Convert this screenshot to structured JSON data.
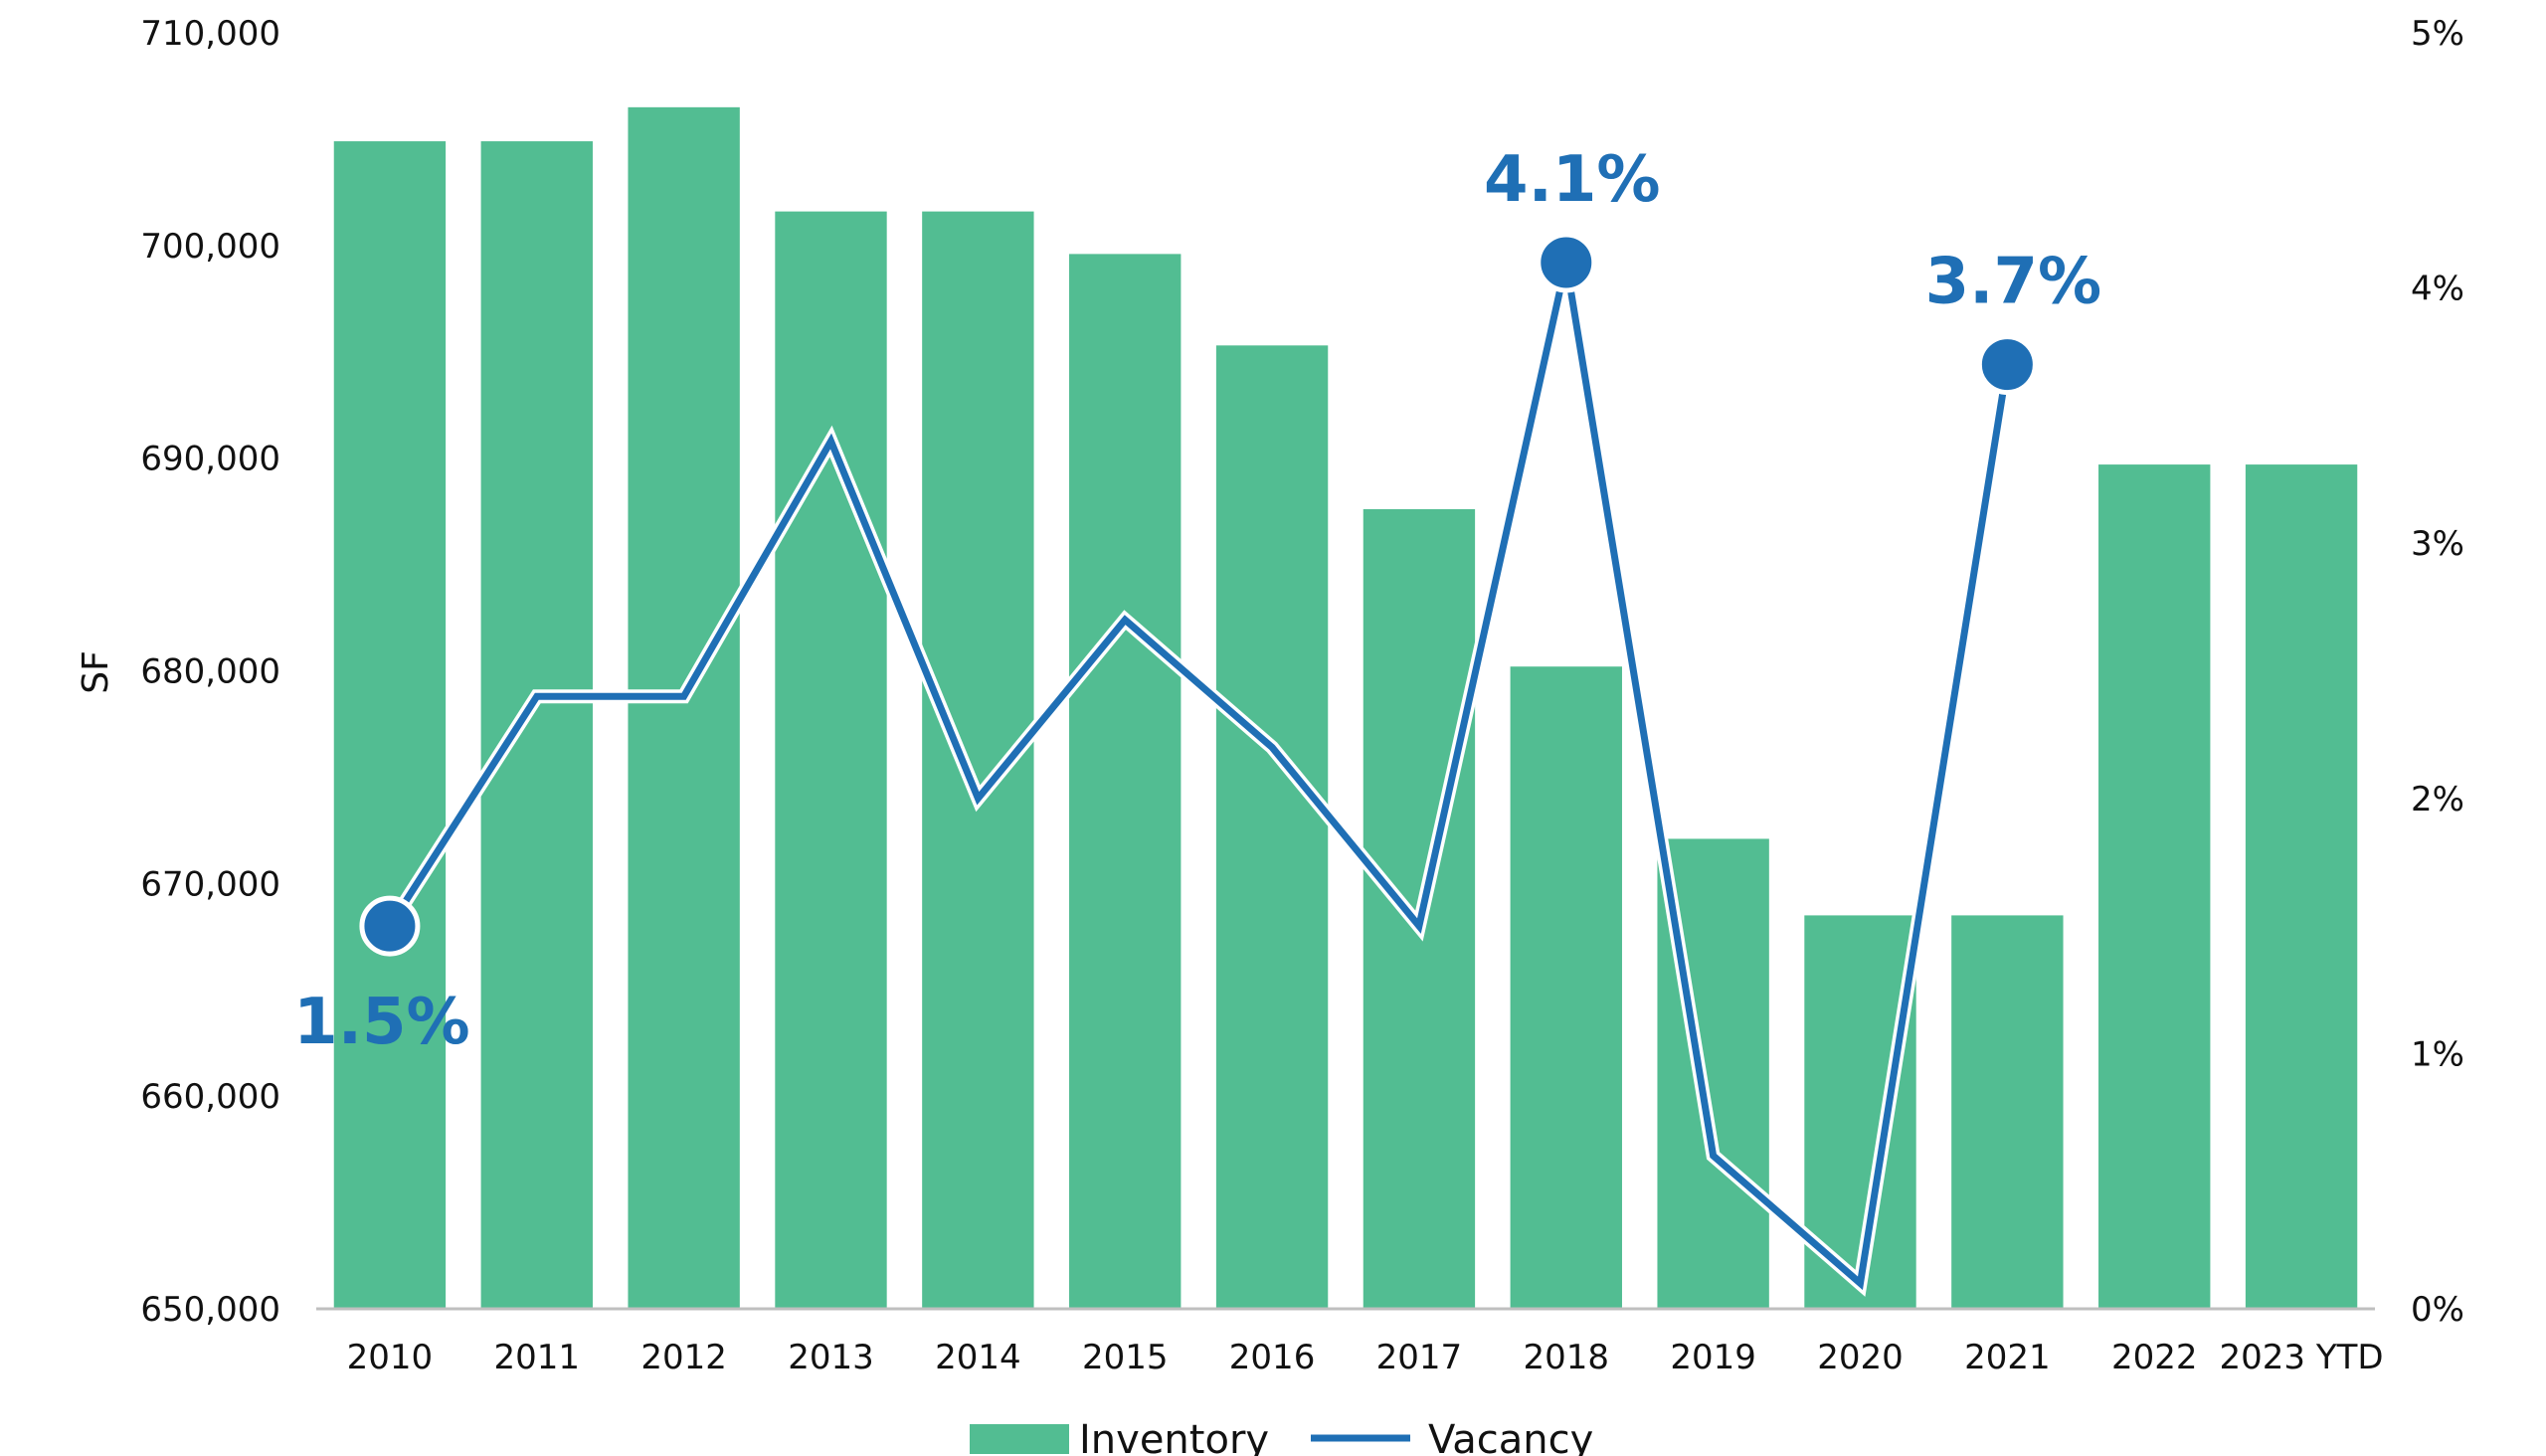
{
  "chart_data": {
    "type": "bar",
    "categories": [
      "2010",
      "2011",
      "2012",
      "2013",
      "2014",
      "2015",
      "2016",
      "2017",
      "2018",
      "2019",
      "2020",
      "2021",
      "2022",
      "2023 YTD"
    ],
    "series": [
      {
        "name": "Inventory",
        "type": "bar",
        "axis": "left",
        "color": "#52bd92",
        "values": [
          704900,
          704900,
          706500,
          701600,
          701600,
          699600,
          695300,
          687600,
          680200,
          672100,
          668500,
          668500,
          689700,
          689700
        ]
      },
      {
        "name": "Vacancy",
        "type": "line",
        "axis": "right",
        "color": "#1f6fb5",
        "values": [
          1.5,
          2.4,
          2.4,
          3.4,
          2.0,
          2.7,
          2.2,
          1.5,
          4.1,
          0.6,
          0.1,
          3.7,
          null,
          null
        ]
      }
    ],
    "y_left": {
      "label": "SF",
      "ylim": [
        650000,
        710000
      ],
      "ticks": [
        "650,000",
        "660,000",
        "670,000",
        "680,000",
        "690,000",
        "700,000",
        "710,000"
      ]
    },
    "y_right": {
      "ylim": [
        0,
        5
      ],
      "ticks": [
        "0%",
        "1%",
        "2%",
        "3%",
        "4%",
        "5%"
      ]
    },
    "callouts": [
      {
        "category_index": 0,
        "label": "1.5%",
        "position": "below"
      },
      {
        "category_index": 8,
        "label": "4.1%",
        "position": "above"
      },
      {
        "category_index": 11,
        "label": "3.7%",
        "position": "above"
      }
    ],
    "legend": {
      "position": "bottom-center",
      "items": [
        "Inventory",
        "Vacancy"
      ]
    },
    "grid": false,
    "title": ""
  }
}
